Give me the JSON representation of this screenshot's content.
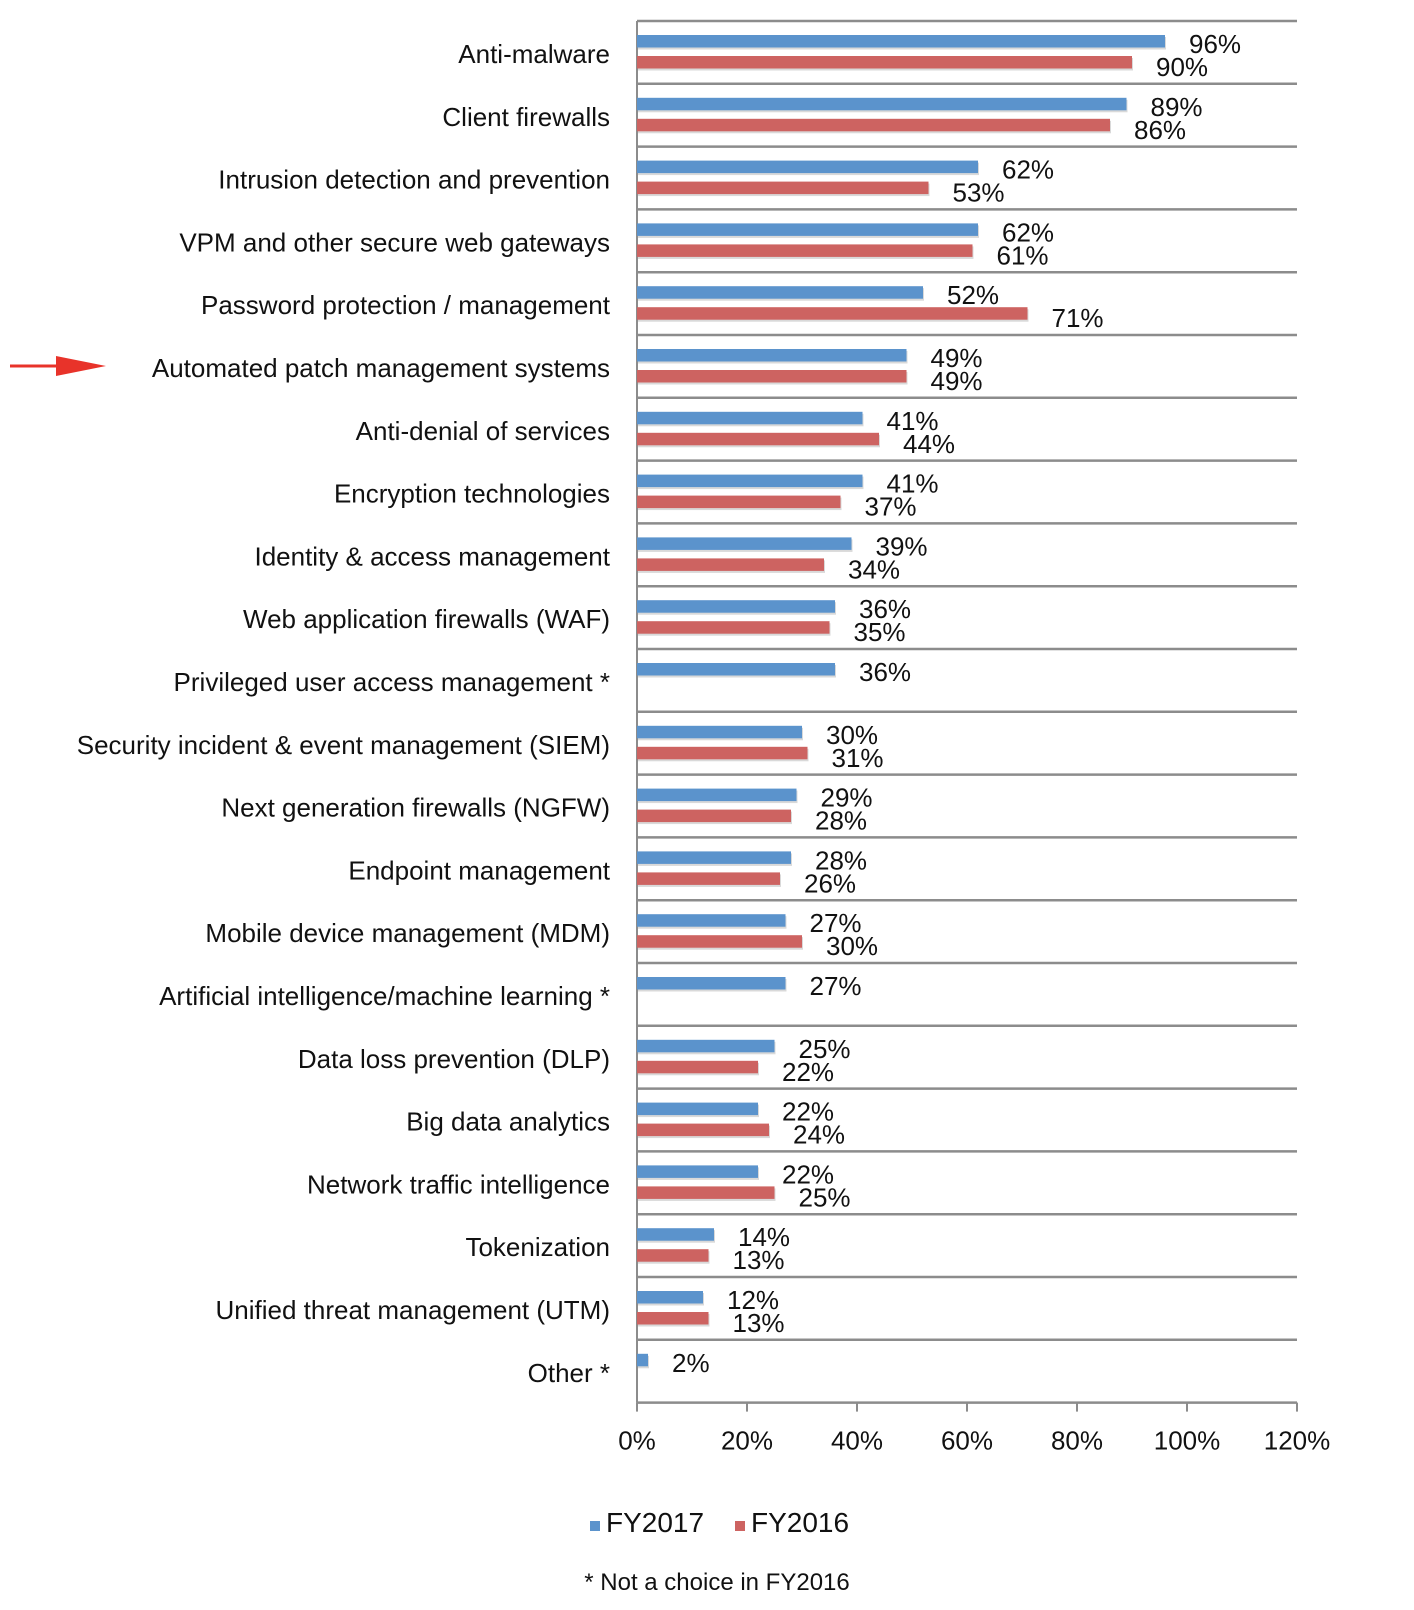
{
  "chart_data": {
    "type": "bar",
    "orientation": "horizontal",
    "categories": [
      "Anti-malware",
      "Client firewalls",
      "Intrusion detection and prevention",
      "VPM and other secure web gateways",
      "Password protection / management",
      "Automated patch management systems",
      "Anti-denial of services",
      "Encryption technologies",
      "Identity & access management",
      "Web application firewalls (WAF)",
      "Privileged user access management *",
      "Security incident & event management (SIEM)",
      "Next generation firewalls (NGFW)",
      "Endpoint management",
      "Mobile device management (MDM)",
      "Artificial intelligence/machine learning *",
      "Data loss prevention (DLP)",
      "Big data analytics",
      "Network traffic intelligence",
      "Tokenization",
      "Unified threat management (UTM)",
      "Other *"
    ],
    "series": [
      {
        "name": "FY2017",
        "color": "#5b93cc",
        "values": [
          96,
          89,
          62,
          62,
          52,
          49,
          41,
          41,
          39,
          36,
          36,
          30,
          29,
          28,
          27,
          27,
          25,
          22,
          22,
          14,
          12,
          2
        ],
        "labels": [
          "96%",
          "89%",
          "62%",
          "62%",
          "52%",
          "49%",
          "41%",
          "41%",
          "39%",
          "36%",
          "36%",
          "30%",
          "29%",
          "28%",
          "27%",
          "27%",
          "25%",
          "22%",
          "22%",
          "14%",
          "12%",
          "2%"
        ]
      },
      {
        "name": "FY2016",
        "color": "#cd6361",
        "values": [
          90,
          86,
          53,
          61,
          71,
          49,
          44,
          37,
          34,
          35,
          null,
          31,
          28,
          26,
          30,
          null,
          22,
          24,
          25,
          13,
          13,
          null
        ],
        "labels": [
          "90%",
          "86%",
          "53%",
          "61%",
          "71%",
          "49%",
          "44%",
          "37%",
          "34%",
          "35%",
          "",
          "31%",
          "28%",
          "26%",
          "30%",
          "",
          "22%",
          "24%",
          "25%",
          "13%",
          "13%",
          ""
        ]
      }
    ],
    "xlim": [
      0,
      120
    ],
    "xticks": [
      0,
      20,
      40,
      60,
      80,
      100,
      120
    ],
    "xtick_labels": [
      "0%",
      "20%",
      "40%",
      "60%",
      "80%",
      "100%",
      "120%"
    ],
    "grid": "horizontal category separators",
    "legend_position": "bottom-center",
    "highlight": {
      "category": "Automated patch management systems",
      "marker": "red arrow",
      "color": "#e8332a"
    },
    "footnote": "* Not a choice in FY2016"
  }
}
